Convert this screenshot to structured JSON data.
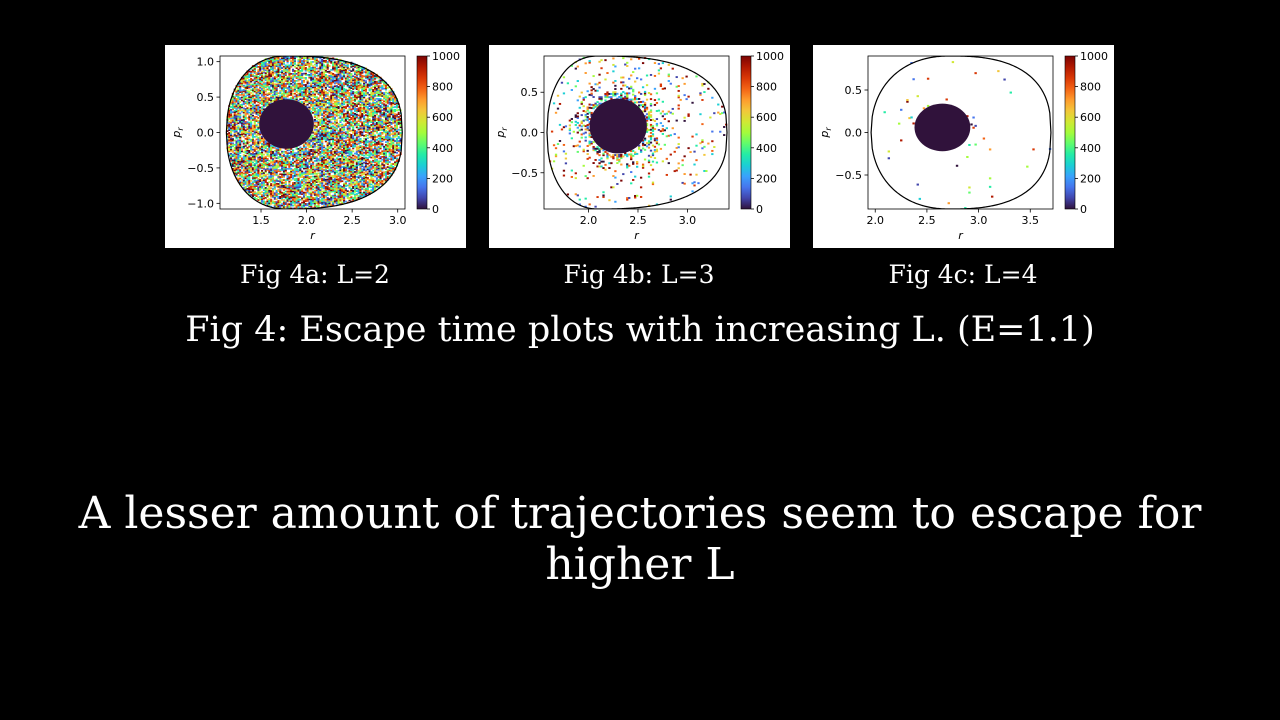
{
  "chart_data": [
    {
      "type": "heatmap",
      "title": "",
      "xlabel": "r",
      "ylabel": "p_r",
      "xlim": [
        1.05,
        3.08
      ],
      "ylim": [
        -1.08,
        1.08
      ],
      "xticks": [
        1.5,
        2.0,
        2.5,
        3.0
      ],
      "yticks": [
        -1.0,
        -0.5,
        0.0,
        0.5,
        1.0
      ],
      "boundary": {
        "type": "egg",
        "r_min": 1.12,
        "r_max": 3.05,
        "r_peak": 1.78,
        "p_max": 1.08
      },
      "bounded_region": {
        "r_center": 1.78,
        "p_center": 0.12,
        "r_radius": 0.3,
        "p_radius": 0.35,
        "escape_time": 0
      },
      "escaping_points_density": 0.78,
      "colorbar": {
        "min": 0,
        "max": 1000,
        "ticks": [
          0,
          200,
          400,
          600,
          800,
          1000
        ]
      }
    },
    {
      "type": "heatmap",
      "title": "",
      "xlabel": "r",
      "ylabel": "p_r",
      "xlim": [
        1.55,
        3.42
      ],
      "ylim": [
        -0.95,
        0.95
      ],
      "xticks": [
        2.0,
        2.5,
        3.0
      ],
      "yticks": [
        -0.5,
        0.0,
        0.5
      ],
      "boundary": {
        "type": "egg",
        "r_min": 1.58,
        "r_max": 3.4,
        "r_peak": 2.1,
        "p_max": 0.95
      },
      "bounded_region": {
        "r_center": 2.3,
        "p_center": 0.08,
        "r_radius": 0.29,
        "p_radius": 0.34,
        "escape_time": 0
      },
      "escaping_points_density": 0.1,
      "colorbar": {
        "min": 0,
        "max": 1000,
        "ticks": [
          0,
          200,
          400,
          600,
          800,
          1000
        ]
      }
    },
    {
      "type": "heatmap",
      "title": "",
      "xlabel": "r",
      "ylabel": "p_r",
      "xlim": [
        1.93,
        3.72
      ],
      "ylim": [
        -0.9,
        0.9
      ],
      "xticks": [
        2.0,
        2.5,
        3.0,
        3.5
      ],
      "yticks": [
        -0.5,
        0.0,
        0.5
      ],
      "boundary": {
        "type": "egg",
        "r_min": 1.96,
        "r_max": 3.7,
        "r_peak": 2.72,
        "p_max": 0.9
      },
      "bounded_region": {
        "r_center": 2.65,
        "p_center": 0.06,
        "r_radius": 0.27,
        "p_radius": 0.28,
        "escape_time": 0
      },
      "escaping_points_density": 0.006,
      "colorbar": {
        "min": 0,
        "max": 1000,
        "ticks": [
          0,
          200,
          400,
          600,
          800,
          1000
        ]
      }
    }
  ],
  "captions": {
    "fig_a": "Fig 4a: L=2",
    "fig_b": "Fig 4b: L=3",
    "fig_c": "Fig 4c: L=4",
    "main": "Fig 4: Escape time plots with increasing L. (E=1.1)"
  },
  "body_text": "A lesser amount of trajectories seem to escape for higher L",
  "colors": {
    "background": "#000000",
    "text": "#ffffff",
    "bounded_region": "#30123b",
    "colormap": "turbo"
  }
}
